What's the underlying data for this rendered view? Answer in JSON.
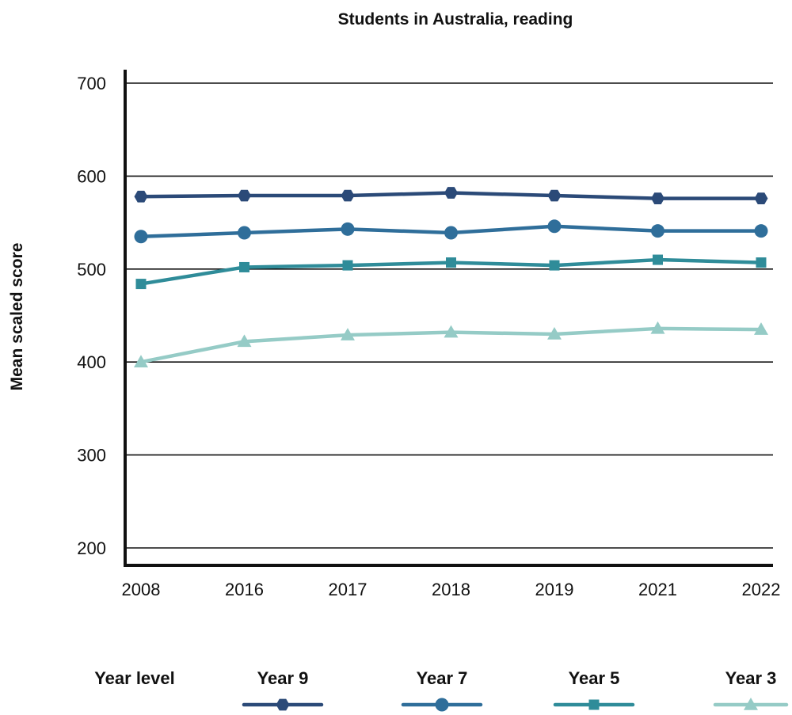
{
  "chart_data": {
    "type": "line",
    "title": "Students in Australia, reading",
    "xlabel": "",
    "ylabel": "Mean scaled score",
    "categories": [
      "2008",
      "2016",
      "2017",
      "2018",
      "2019",
      "2021",
      "2022"
    ],
    "ylim": [
      200,
      700
    ],
    "yticks": [
      200,
      300,
      400,
      500,
      600,
      700
    ],
    "grid": true,
    "legend": {
      "title": "Year level",
      "placement": "bottom"
    },
    "series": [
      {
        "name": "Year 9",
        "values": [
          578,
          579,
          579,
          582,
          579,
          576,
          576
        ],
        "color": "#2b4a78",
        "marker": "hexagon"
      },
      {
        "name": "Year 7",
        "values": [
          535,
          539,
          543,
          539,
          546,
          541,
          541
        ],
        "color": "#2f6e9a",
        "marker": "circle"
      },
      {
        "name": "Year 5",
        "values": [
          484,
          502,
          504,
          507,
          504,
          510,
          507
        ],
        "color": "#2f8c99",
        "marker": "square"
      },
      {
        "name": "Year 3",
        "values": [
          400,
          422,
          429,
          432,
          430,
          436,
          435
        ],
        "color": "#95cbc6",
        "marker": "triangle"
      }
    ]
  }
}
